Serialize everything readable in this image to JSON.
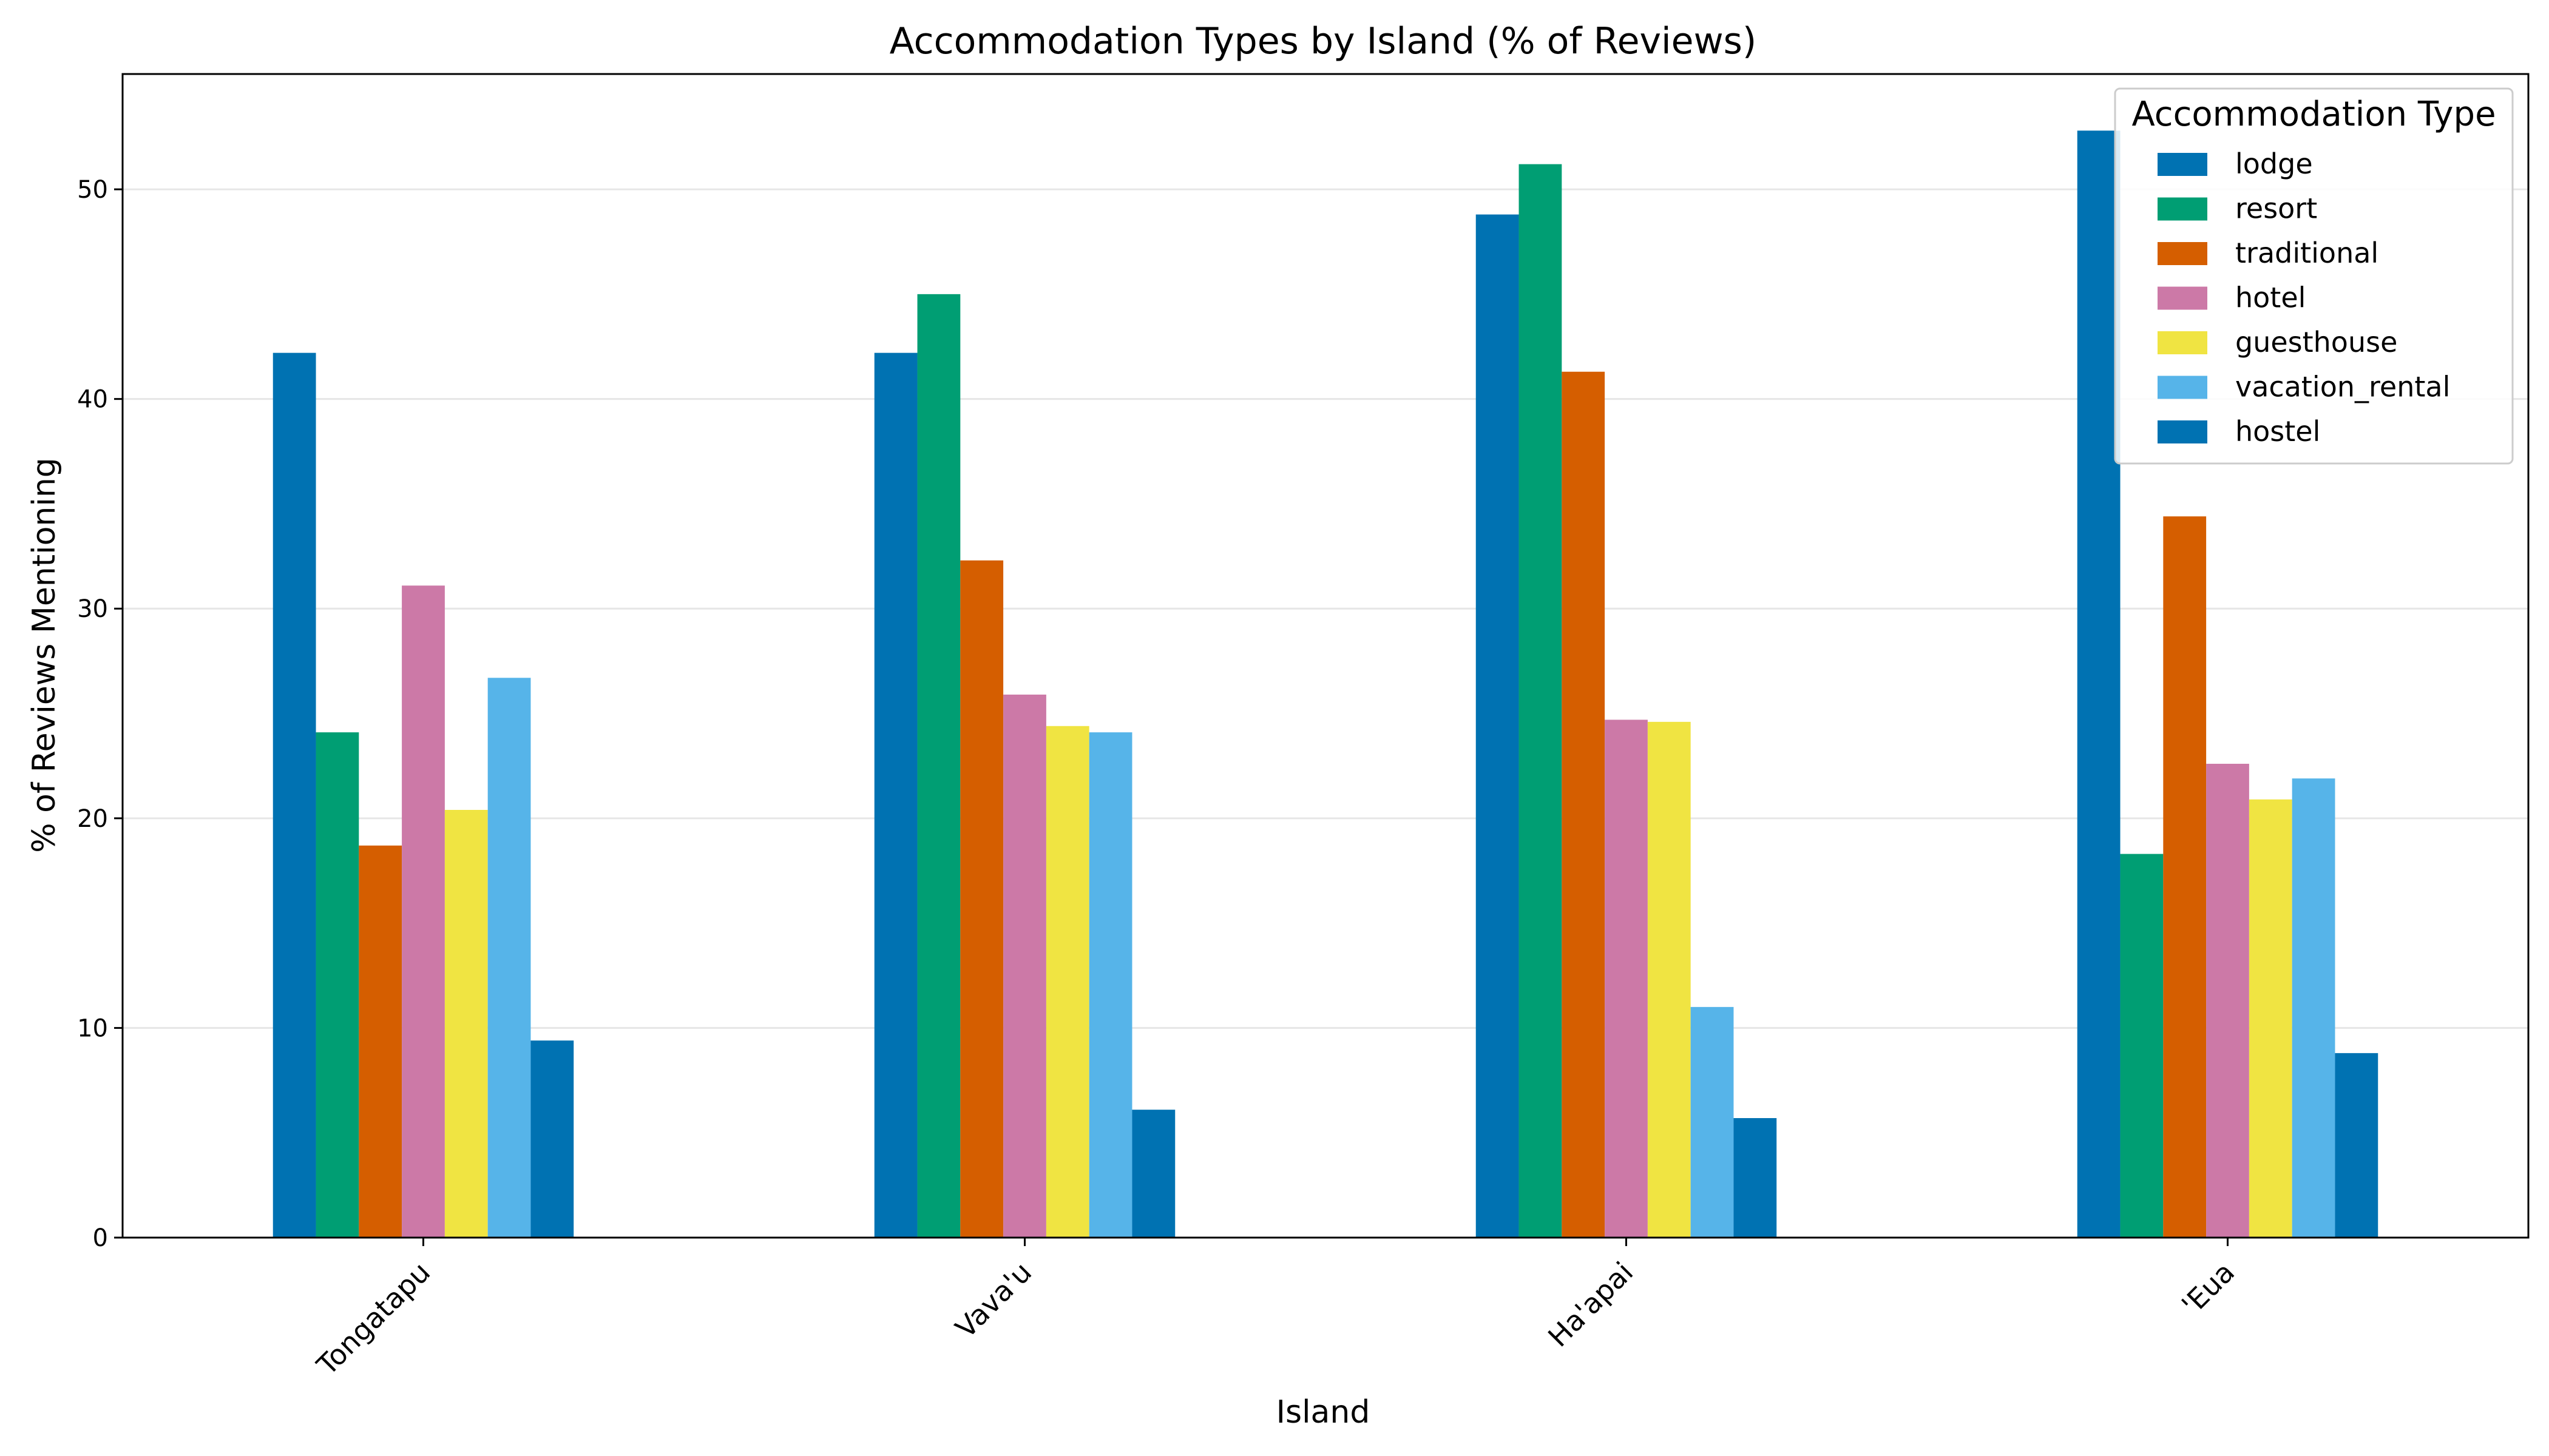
{
  "chart_data": {
    "type": "bar",
    "title": "Accommodation Types by Island (% of Reviews)",
    "xlabel": "Island",
    "ylabel": "% of Reviews Mentioning",
    "categories": [
      "Tongatapu",
      "Vava'u",
      "Ha'apai",
      "'Eua"
    ],
    "ylim": [
      0,
      55.5
    ],
    "yticks": [
      0,
      10,
      20,
      30,
      40,
      50
    ],
    "grid": "y",
    "legend": {
      "title": "Accommodation Type",
      "placement": "top-right"
    },
    "series": [
      {
        "name": "lodge",
        "color": "#0072b2",
        "values": [
          42.2,
          42.2,
          48.8,
          52.8
        ]
      },
      {
        "name": "resort",
        "color": "#009e73",
        "values": [
          24.1,
          45.0,
          51.2,
          18.3
        ]
      },
      {
        "name": "traditional",
        "color": "#d55e00",
        "values": [
          18.7,
          32.3,
          41.3,
          34.4
        ]
      },
      {
        "name": "hotel",
        "color": "#cc79a7",
        "values": [
          31.1,
          25.9,
          24.7,
          22.6
        ]
      },
      {
        "name": "guesthouse",
        "color": "#f0e442",
        "values": [
          20.4,
          24.4,
          24.6,
          20.9
        ]
      },
      {
        "name": "vacation_rental",
        "color": "#56b4e9",
        "values": [
          26.7,
          24.1,
          11.0,
          21.9
        ]
      },
      {
        "name": "hostel",
        "color": "#0072b2",
        "values": [
          9.4,
          6.1,
          5.7,
          8.8
        ]
      }
    ]
  }
}
